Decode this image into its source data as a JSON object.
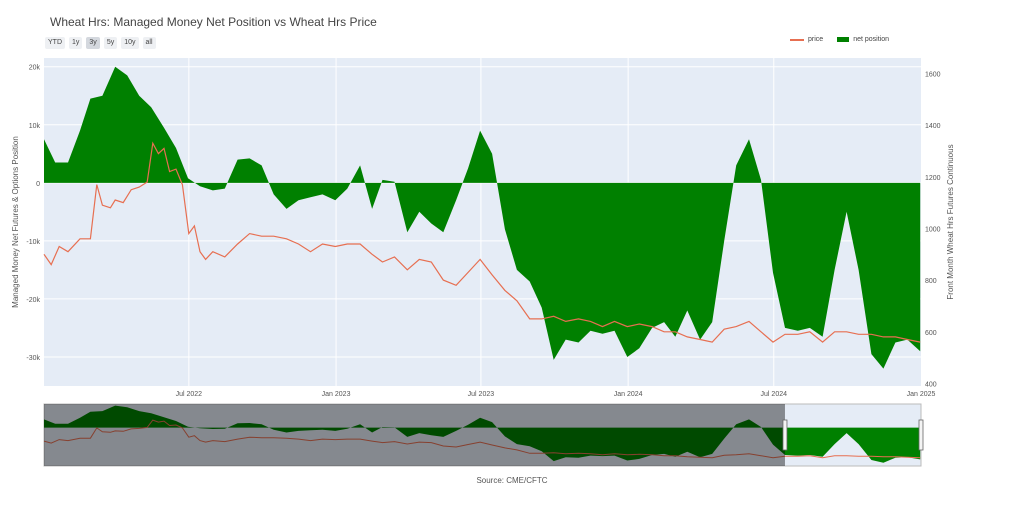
{
  "chart_data": {
    "type": "line",
    "title": "Wheat Hrs: Managed Money Net Position vs Wheat Hrs Price",
    "source": "Source: CME/CFTC",
    "range_buttons": [
      {
        "label": "YTD",
        "active": false
      },
      {
        "label": "1y",
        "active": false
      },
      {
        "label": "3y",
        "active": true
      },
      {
        "label": "5y",
        "active": false
      },
      {
        "label": "10y",
        "active": false
      },
      {
        "label": "all",
        "active": false
      }
    ],
    "ylabel": "Managed Money Net Futures & Options Position",
    "y2label": "Front Month Wheat Hrs Futures Continuous",
    "xlim": [
      "2022-01-01",
      "2025-01-01"
    ],
    "ylim": [
      -35000,
      21500
    ],
    "y2lim": [
      390,
      1660
    ],
    "x_ticks": [
      {
        "date": "2022-07-01",
        "label": "Jul 2022"
      },
      {
        "date": "2023-01-01",
        "label": "Jan 2023"
      },
      {
        "date": "2023-07-01",
        "label": "Jul 2023"
      },
      {
        "date": "2024-01-01",
        "label": "Jan 2024"
      },
      {
        "date": "2024-07-01",
        "label": "Jul 2024"
      },
      {
        "date": "2025-01-01",
        "label": "Jan 2025"
      }
    ],
    "y_ticks": [
      {
        "value": 20000,
        "label": "20k"
      },
      {
        "value": 10000,
        "label": "10k"
      },
      {
        "value": 0,
        "label": "0"
      },
      {
        "value": -10000,
        "label": "-10k"
      },
      {
        "value": -20000,
        "label": "-20k"
      },
      {
        "value": -30000,
        "label": "-30k"
      }
    ],
    "y2_ticks": [
      400,
      600,
      800,
      1000,
      1200,
      1400,
      1600
    ],
    "legend_position": "top-right",
    "colors": {
      "price": "#e76f51",
      "net_position": "#008000",
      "plot_bg": "#e5ecf6"
    },
    "series": [
      {
        "name": "net position",
        "axis": "y",
        "kind": "area",
        "points": [
          [
            "2022-01-01",
            7500
          ],
          [
            "2022-01-15",
            3500
          ],
          [
            "2022-01-31",
            3500
          ],
          [
            "2022-02-15",
            9000
          ],
          [
            "2022-02-28",
            14500
          ],
          [
            "2022-03-15",
            15000
          ],
          [
            "2022-03-31",
            20000
          ],
          [
            "2022-04-15",
            18500
          ],
          [
            "2022-04-30",
            15000
          ],
          [
            "2022-05-15",
            13000
          ],
          [
            "2022-05-31",
            9500
          ],
          [
            "2022-06-15",
            6000
          ],
          [
            "2022-06-30",
            800
          ],
          [
            "2022-07-15",
            -600
          ],
          [
            "2022-07-31",
            -1300
          ],
          [
            "2022-08-15",
            -1000
          ],
          [
            "2022-08-31",
            4000
          ],
          [
            "2022-09-15",
            4200
          ],
          [
            "2022-09-30",
            3000
          ],
          [
            "2022-10-15",
            -2000
          ],
          [
            "2022-10-31",
            -4500
          ],
          [
            "2022-11-15",
            -3000
          ],
          [
            "2022-11-30",
            -2500
          ],
          [
            "2022-12-15",
            -2000
          ],
          [
            "2022-12-31",
            -3000
          ],
          [
            "2023-01-15",
            -1000
          ],
          [
            "2023-01-31",
            3000
          ],
          [
            "2023-02-15",
            -4500
          ],
          [
            "2023-02-28",
            500
          ],
          [
            "2023-03-15",
            200
          ],
          [
            "2023-03-31",
            -8500
          ],
          [
            "2023-04-15",
            -5000
          ],
          [
            "2023-04-30",
            -7000
          ],
          [
            "2023-05-15",
            -8500
          ],
          [
            "2023-05-31",
            -3000
          ],
          [
            "2023-06-15",
            2500
          ],
          [
            "2023-06-30",
            9000
          ],
          [
            "2023-07-15",
            5000
          ],
          [
            "2023-07-31",
            -8000
          ],
          [
            "2023-08-15",
            -15000
          ],
          [
            "2023-08-31",
            -17000
          ],
          [
            "2023-09-15",
            -21500
          ],
          [
            "2023-09-30",
            -30500
          ],
          [
            "2023-10-15",
            -27000
          ],
          [
            "2023-10-31",
            -27500
          ],
          [
            "2023-11-15",
            -25500
          ],
          [
            "2023-11-30",
            -26000
          ],
          [
            "2023-12-15",
            -25500
          ],
          [
            "2023-12-31",
            -30000
          ],
          [
            "2024-01-15",
            -28500
          ],
          [
            "2024-01-31",
            -25000
          ],
          [
            "2024-02-15",
            -24000
          ],
          [
            "2024-02-29",
            -26500
          ],
          [
            "2024-03-15",
            -22000
          ],
          [
            "2024-03-31",
            -27000
          ],
          [
            "2024-04-15",
            -24000
          ],
          [
            "2024-04-30",
            -10000
          ],
          [
            "2024-05-15",
            3000
          ],
          [
            "2024-05-31",
            7500
          ],
          [
            "2024-06-15",
            500
          ],
          [
            "2024-06-30",
            -15500
          ],
          [
            "2024-07-15",
            -25000
          ],
          [
            "2024-07-31",
            -25500
          ],
          [
            "2024-08-15",
            -25000
          ],
          [
            "2024-08-31",
            -26500
          ],
          [
            "2024-09-15",
            -15000
          ],
          [
            "2024-09-30",
            -5000
          ],
          [
            "2024-10-15",
            -15000
          ],
          [
            "2024-10-31",
            -29500
          ],
          [
            "2024-11-15",
            -32000
          ],
          [
            "2024-11-30",
            -27500
          ],
          [
            "2024-12-15",
            -27000
          ],
          [
            "2024-12-31",
            -29000
          ]
        ]
      },
      {
        "name": "price",
        "axis": "y2",
        "kind": "line",
        "points": [
          [
            "2022-01-01",
            900
          ],
          [
            "2022-01-10",
            860
          ],
          [
            "2022-01-20",
            930
          ],
          [
            "2022-01-31",
            910
          ],
          [
            "2022-02-15",
            960
          ],
          [
            "2022-02-28",
            960
          ],
          [
            "2022-03-08",
            1170
          ],
          [
            "2022-03-15",
            1090
          ],
          [
            "2022-03-25",
            1080
          ],
          [
            "2022-03-31",
            1110
          ],
          [
            "2022-04-10",
            1100
          ],
          [
            "2022-04-20",
            1150
          ],
          [
            "2022-04-30",
            1160
          ],
          [
            "2022-05-10",
            1180
          ],
          [
            "2022-05-17",
            1330
          ],
          [
            "2022-05-24",
            1290
          ],
          [
            "2022-05-31",
            1310
          ],
          [
            "2022-06-07",
            1220
          ],
          [
            "2022-06-15",
            1230
          ],
          [
            "2022-06-23",
            1170
          ],
          [
            "2022-07-01",
            980
          ],
          [
            "2022-07-08",
            1010
          ],
          [
            "2022-07-15",
            910
          ],
          [
            "2022-07-22",
            880
          ],
          [
            "2022-07-31",
            910
          ],
          [
            "2022-08-15",
            890
          ],
          [
            "2022-08-31",
            940
          ],
          [
            "2022-09-15",
            980
          ],
          [
            "2022-09-30",
            970
          ],
          [
            "2022-10-15",
            970
          ],
          [
            "2022-10-31",
            960
          ],
          [
            "2022-11-15",
            940
          ],
          [
            "2022-11-30",
            910
          ],
          [
            "2022-12-15",
            940
          ],
          [
            "2022-12-31",
            930
          ],
          [
            "2023-01-15",
            940
          ],
          [
            "2023-01-31",
            940
          ],
          [
            "2023-02-15",
            900
          ],
          [
            "2023-02-28",
            870
          ],
          [
            "2023-03-15",
            890
          ],
          [
            "2023-03-31",
            840
          ],
          [
            "2023-04-15",
            880
          ],
          [
            "2023-04-30",
            870
          ],
          [
            "2023-05-15",
            800
          ],
          [
            "2023-05-31",
            780
          ],
          [
            "2023-06-15",
            830
          ],
          [
            "2023-06-30",
            880
          ],
          [
            "2023-07-15",
            820
          ],
          [
            "2023-07-31",
            760
          ],
          [
            "2023-08-15",
            720
          ],
          [
            "2023-08-31",
            650
          ],
          [
            "2023-09-15",
            650
          ],
          [
            "2023-09-30",
            660
          ],
          [
            "2023-10-15",
            640
          ],
          [
            "2023-10-31",
            650
          ],
          [
            "2023-11-15",
            640
          ],
          [
            "2023-11-30",
            620
          ],
          [
            "2023-12-15",
            640
          ],
          [
            "2023-12-31",
            620
          ],
          [
            "2024-01-15",
            630
          ],
          [
            "2024-01-31",
            620
          ],
          [
            "2024-02-15",
            600
          ],
          [
            "2024-02-29",
            600
          ],
          [
            "2024-03-15",
            580
          ],
          [
            "2024-03-31",
            570
          ],
          [
            "2024-04-15",
            560
          ],
          [
            "2024-04-30",
            610
          ],
          [
            "2024-05-15",
            620
          ],
          [
            "2024-05-31",
            640
          ],
          [
            "2024-06-15",
            600
          ],
          [
            "2024-06-30",
            560
          ],
          [
            "2024-07-15",
            590
          ],
          [
            "2024-07-31",
            590
          ],
          [
            "2024-08-15",
            600
          ],
          [
            "2024-08-31",
            560
          ],
          [
            "2024-09-15",
            600
          ],
          [
            "2024-09-30",
            600
          ],
          [
            "2024-10-15",
            590
          ],
          [
            "2024-10-31",
            590
          ],
          [
            "2024-11-15",
            580
          ],
          [
            "2024-11-30",
            580
          ],
          [
            "2024-12-15",
            570
          ],
          [
            "2024-12-31",
            560
          ]
        ]
      }
    ]
  }
}
